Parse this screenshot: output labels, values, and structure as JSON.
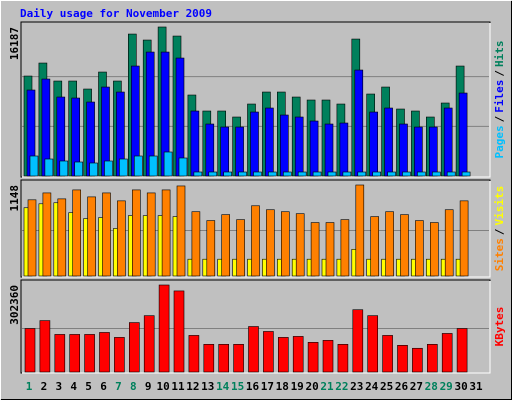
{
  "chart_data": {
    "type": "bar",
    "title": "Daily usage for November 2009",
    "categories": [
      "1",
      "2",
      "3",
      "4",
      "5",
      "6",
      "7",
      "8",
      "9",
      "10",
      "11",
      "12",
      "13",
      "14",
      "15",
      "16",
      "17",
      "18",
      "19",
      "20",
      "21",
      "22",
      "23",
      "24",
      "25",
      "26",
      "27",
      "28",
      "29",
      "30",
      "31"
    ],
    "category_colors": [
      "#00805c",
      "#000000",
      "#000000",
      "#000000",
      "#000000",
      "#000000",
      "#00805c",
      "#00805c",
      "#000000",
      "#000000",
      "#000000",
      "#000000",
      "#000000",
      "#00805c",
      "#00805c",
      "#000000",
      "#000000",
      "#000000",
      "#000000",
      "#000000",
      "#00805c",
      "#00805c",
      "#000000",
      "#000000",
      "#000000",
      "#000000",
      "#000000",
      "#00805c",
      "#00805c",
      "#000000",
      "#000000"
    ],
    "legend_separator": "/",
    "panels": [
      {
        "ylim": [
          0,
          16187
        ],
        "yticks": [
          16187
        ],
        "series": [
          {
            "name": "Pages",
            "color": "#00c0ff",
            "values": [
              2172,
              1846,
              1629,
              1520,
              1412,
              1629,
              1846,
              2172,
              2172,
              2606,
              1955,
              434,
              434,
              434,
              434,
              434,
              434,
              434,
              434,
              434,
              434,
              434,
              434,
              434,
              434,
              434,
              434,
              434,
              434,
              434,
              0
            ]
          },
          {
            "name": "Files",
            "color": "#0000ff",
            "values": [
              9340,
              10534,
              8579,
              8471,
              8036,
              9665,
              9122,
              11946,
              13466,
              13466,
              12815,
              7059,
              5647,
              5321,
              5321,
              6950,
              7385,
              6625,
              6407,
              5973,
              5647,
              5756,
              11512,
              6950,
              7385,
              5647,
              5321,
              5321,
              7385,
              9014,
              0
            ]
          },
          {
            "name": "Hits",
            "color": "#00805c",
            "values": [
              10860,
              12272,
              10317,
              10317,
              9448,
              11294,
              10317,
              15421,
              14770,
              16187,
              15204,
              8797,
              7059,
              7059,
              6407,
              7819,
              9122,
              9122,
              8579,
              8254,
              8254,
              7819,
              14878,
              8905,
              9665,
              7276,
              7059,
              6407,
              7928,
              11946,
              0
            ]
          }
        ]
      },
      {
        "ylim": [
          0,
          1148
        ],
        "yticks": [
          1148
        ],
        "series": [
          {
            "name": "Sites",
            "color": "#ff8000",
            "values": [
              961,
              1048,
              973,
              1086,
              998,
              1048,
              948,
              1086,
              1048,
              1086,
              1136,
              811,
              699,
              774,
              711,
              886,
              836,
              811,
              786,
              674,
              674,
              711,
              1148,
              749,
              811,
              774,
              699,
              674,
              836,
              948,
              0
            ]
          },
          {
            "name": "Visits",
            "color": "#ffff00",
            "values": [
              861,
              911,
              924,
              799,
              724,
              736,
              599,
              761,
              761,
              761,
              749,
              212,
              212,
              212,
              212,
              212,
              212,
              212,
              212,
              212,
              212,
              212,
              337,
              212,
              212,
              212,
              212,
              212,
              212,
              212,
              0
            ]
          }
        ]
      },
      {
        "ylim": [
          0,
          302360
        ],
        "yticks": [
          302360
        ],
        "series": [
          {
            "name": "KBytes",
            "color": "#ff0000",
            "values": [
              151184,
              178672,
              130568,
              130568,
              130568,
              137440,
              120260,
              171800,
              195852,
              302360,
              281752,
              127132,
              96208,
              96208,
              96208,
              158056,
              140876,
              120260,
              123696,
              103080,
              109952,
              96208,
              216468,
              195852,
              127132,
              92772,
              82464,
              96208,
              134004,
              151184,
              0
            ]
          }
        ]
      }
    ]
  }
}
